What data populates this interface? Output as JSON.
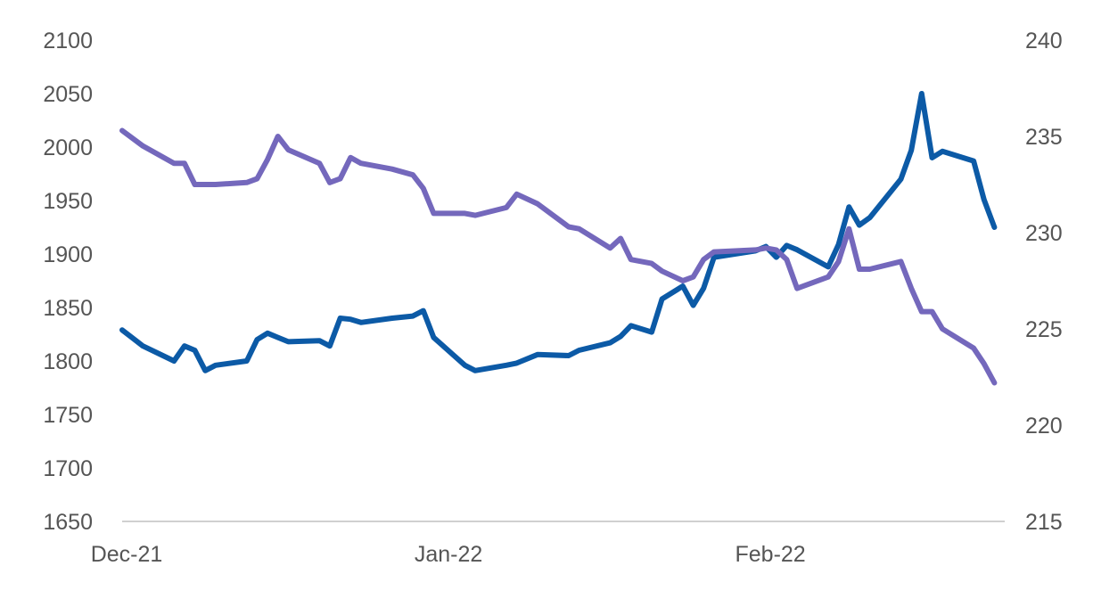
{
  "chart_data": {
    "type": "line",
    "title": "",
    "xlabel": "",
    "ylabel": "",
    "x_ticks": [
      "Dec-21",
      "Jan-22",
      "Feb-22"
    ],
    "y_left": {
      "ylim": [
        1650,
        2100
      ],
      "ticks": [
        "2100",
        "2050",
        "2000",
        "1950",
        "1900",
        "1850",
        "1800",
        "1750",
        "1700",
        "1650"
      ]
    },
    "y_right": {
      "ylim": [
        215,
        240
      ],
      "ticks": [
        "240",
        "235",
        "230",
        "225",
        "220",
        "215"
      ]
    },
    "grid": false,
    "legend": "none",
    "series": [
      {
        "axis": "left",
        "color": "#0c5aa6",
        "x": [
          "2021-12-01",
          "2021-12-03",
          "2021-12-06",
          "2021-12-07",
          "2021-12-08",
          "2021-12-09",
          "2021-12-10",
          "2021-12-13",
          "2021-12-14",
          "2021-12-15",
          "2021-12-16",
          "2021-12-17",
          "2021-12-20",
          "2021-12-21",
          "2021-12-22",
          "2021-12-23",
          "2021-12-24",
          "2021-12-27",
          "2021-12-29",
          "2021-12-30",
          "2021-12-31",
          "2022-01-03",
          "2022-01-04",
          "2022-01-07",
          "2022-01-08",
          "2022-01-10",
          "2022-01-13",
          "2022-01-14",
          "2022-01-17",
          "2022-01-18",
          "2022-01-19",
          "2022-01-21",
          "2022-01-22",
          "2022-01-24",
          "2022-01-25",
          "2022-01-26",
          "2022-01-27",
          "2022-01-31",
          "2022-02-01",
          "2022-02-02",
          "2022-02-03",
          "2022-02-04",
          "2022-02-07",
          "2022-02-08",
          "2022-02-09",
          "2022-02-10",
          "2022-02-11",
          "2022-02-14",
          "2022-02-15",
          "2022-02-16",
          "2022-02-17",
          "2022-02-18",
          "2022-02-21",
          "2022-02-22",
          "2022-02-23"
        ],
        "values": [
          1829,
          1814,
          1800,
          1814,
          1810,
          1791,
          1796,
          1800,
          1820,
          1826,
          1822,
          1818,
          1819,
          1814,
          1840,
          1839,
          1836,
          1840,
          1842,
          1847,
          1822,
          1796,
          1791,
          1796,
          1798,
          1806,
          1805,
          1810,
          1817,
          1823,
          1833,
          1827,
          1858,
          1870,
          1852,
          1868,
          1897,
          1903,
          1907,
          1897,
          1908,
          1904,
          1888,
          1909,
          1944,
          1927,
          1934,
          1970,
          1997,
          2050,
          1990,
          1996,
          1987,
          1951,
          1925
        ]
      },
      {
        "axis": "right",
        "color": "#7468bc",
        "x": [
          "2021-12-01",
          "2021-12-03",
          "2021-12-06",
          "2021-12-07",
          "2021-12-08",
          "2021-12-09",
          "2021-12-10",
          "2021-12-13",
          "2021-12-14",
          "2021-12-15",
          "2021-12-16",
          "2021-12-17",
          "2021-12-20",
          "2021-12-21",
          "2021-12-22",
          "2021-12-23",
          "2021-12-24",
          "2021-12-27",
          "2021-12-29",
          "2021-12-30",
          "2021-12-31",
          "2022-01-03",
          "2022-01-04",
          "2022-01-07",
          "2022-01-08",
          "2022-01-10",
          "2022-01-13",
          "2022-01-14",
          "2022-01-17",
          "2022-01-18",
          "2022-01-19",
          "2022-01-21",
          "2022-01-22",
          "2022-01-24",
          "2022-01-25",
          "2022-01-26",
          "2022-01-27",
          "2022-01-31",
          "2022-02-01",
          "2022-02-02",
          "2022-02-03",
          "2022-02-04",
          "2022-02-07",
          "2022-02-08",
          "2022-02-09",
          "2022-02-10",
          "2022-02-11",
          "2022-02-14",
          "2022-02-15",
          "2022-02-16",
          "2022-02-17",
          "2022-02-18",
          "2022-02-21",
          "2022-02-22",
          "2022-02-23"
        ],
        "values": [
          235.3,
          234.5,
          233.6,
          233.6,
          232.5,
          232.5,
          232.5,
          232.6,
          232.8,
          233.8,
          235.0,
          234.3,
          233.6,
          232.6,
          232.8,
          233.9,
          233.6,
          233.3,
          233.0,
          232.3,
          231.0,
          231.0,
          230.9,
          231.3,
          232.0,
          231.5,
          230.3,
          230.2,
          229.2,
          229.7,
          228.6,
          228.4,
          228.0,
          227.5,
          227.7,
          228.6,
          229.0,
          229.1,
          229.2,
          229.1,
          228.6,
          227.1,
          227.7,
          228.5,
          230.2,
          228.1,
          228.1,
          228.5,
          227.1,
          225.9,
          225.9,
          225.0,
          224.0,
          223.2,
          222.2
        ]
      }
    ]
  }
}
